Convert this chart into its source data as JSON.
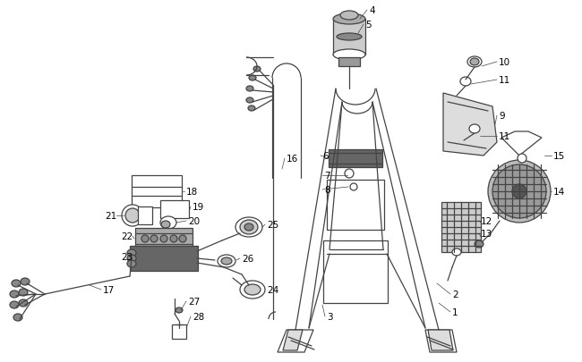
{
  "bg_color": "#ffffff",
  "line_color": "#444444",
  "text_color": "#000000",
  "fig_width": 6.5,
  "fig_height": 4.06,
  "dpi": 100,
  "font_size_label": 7.5
}
